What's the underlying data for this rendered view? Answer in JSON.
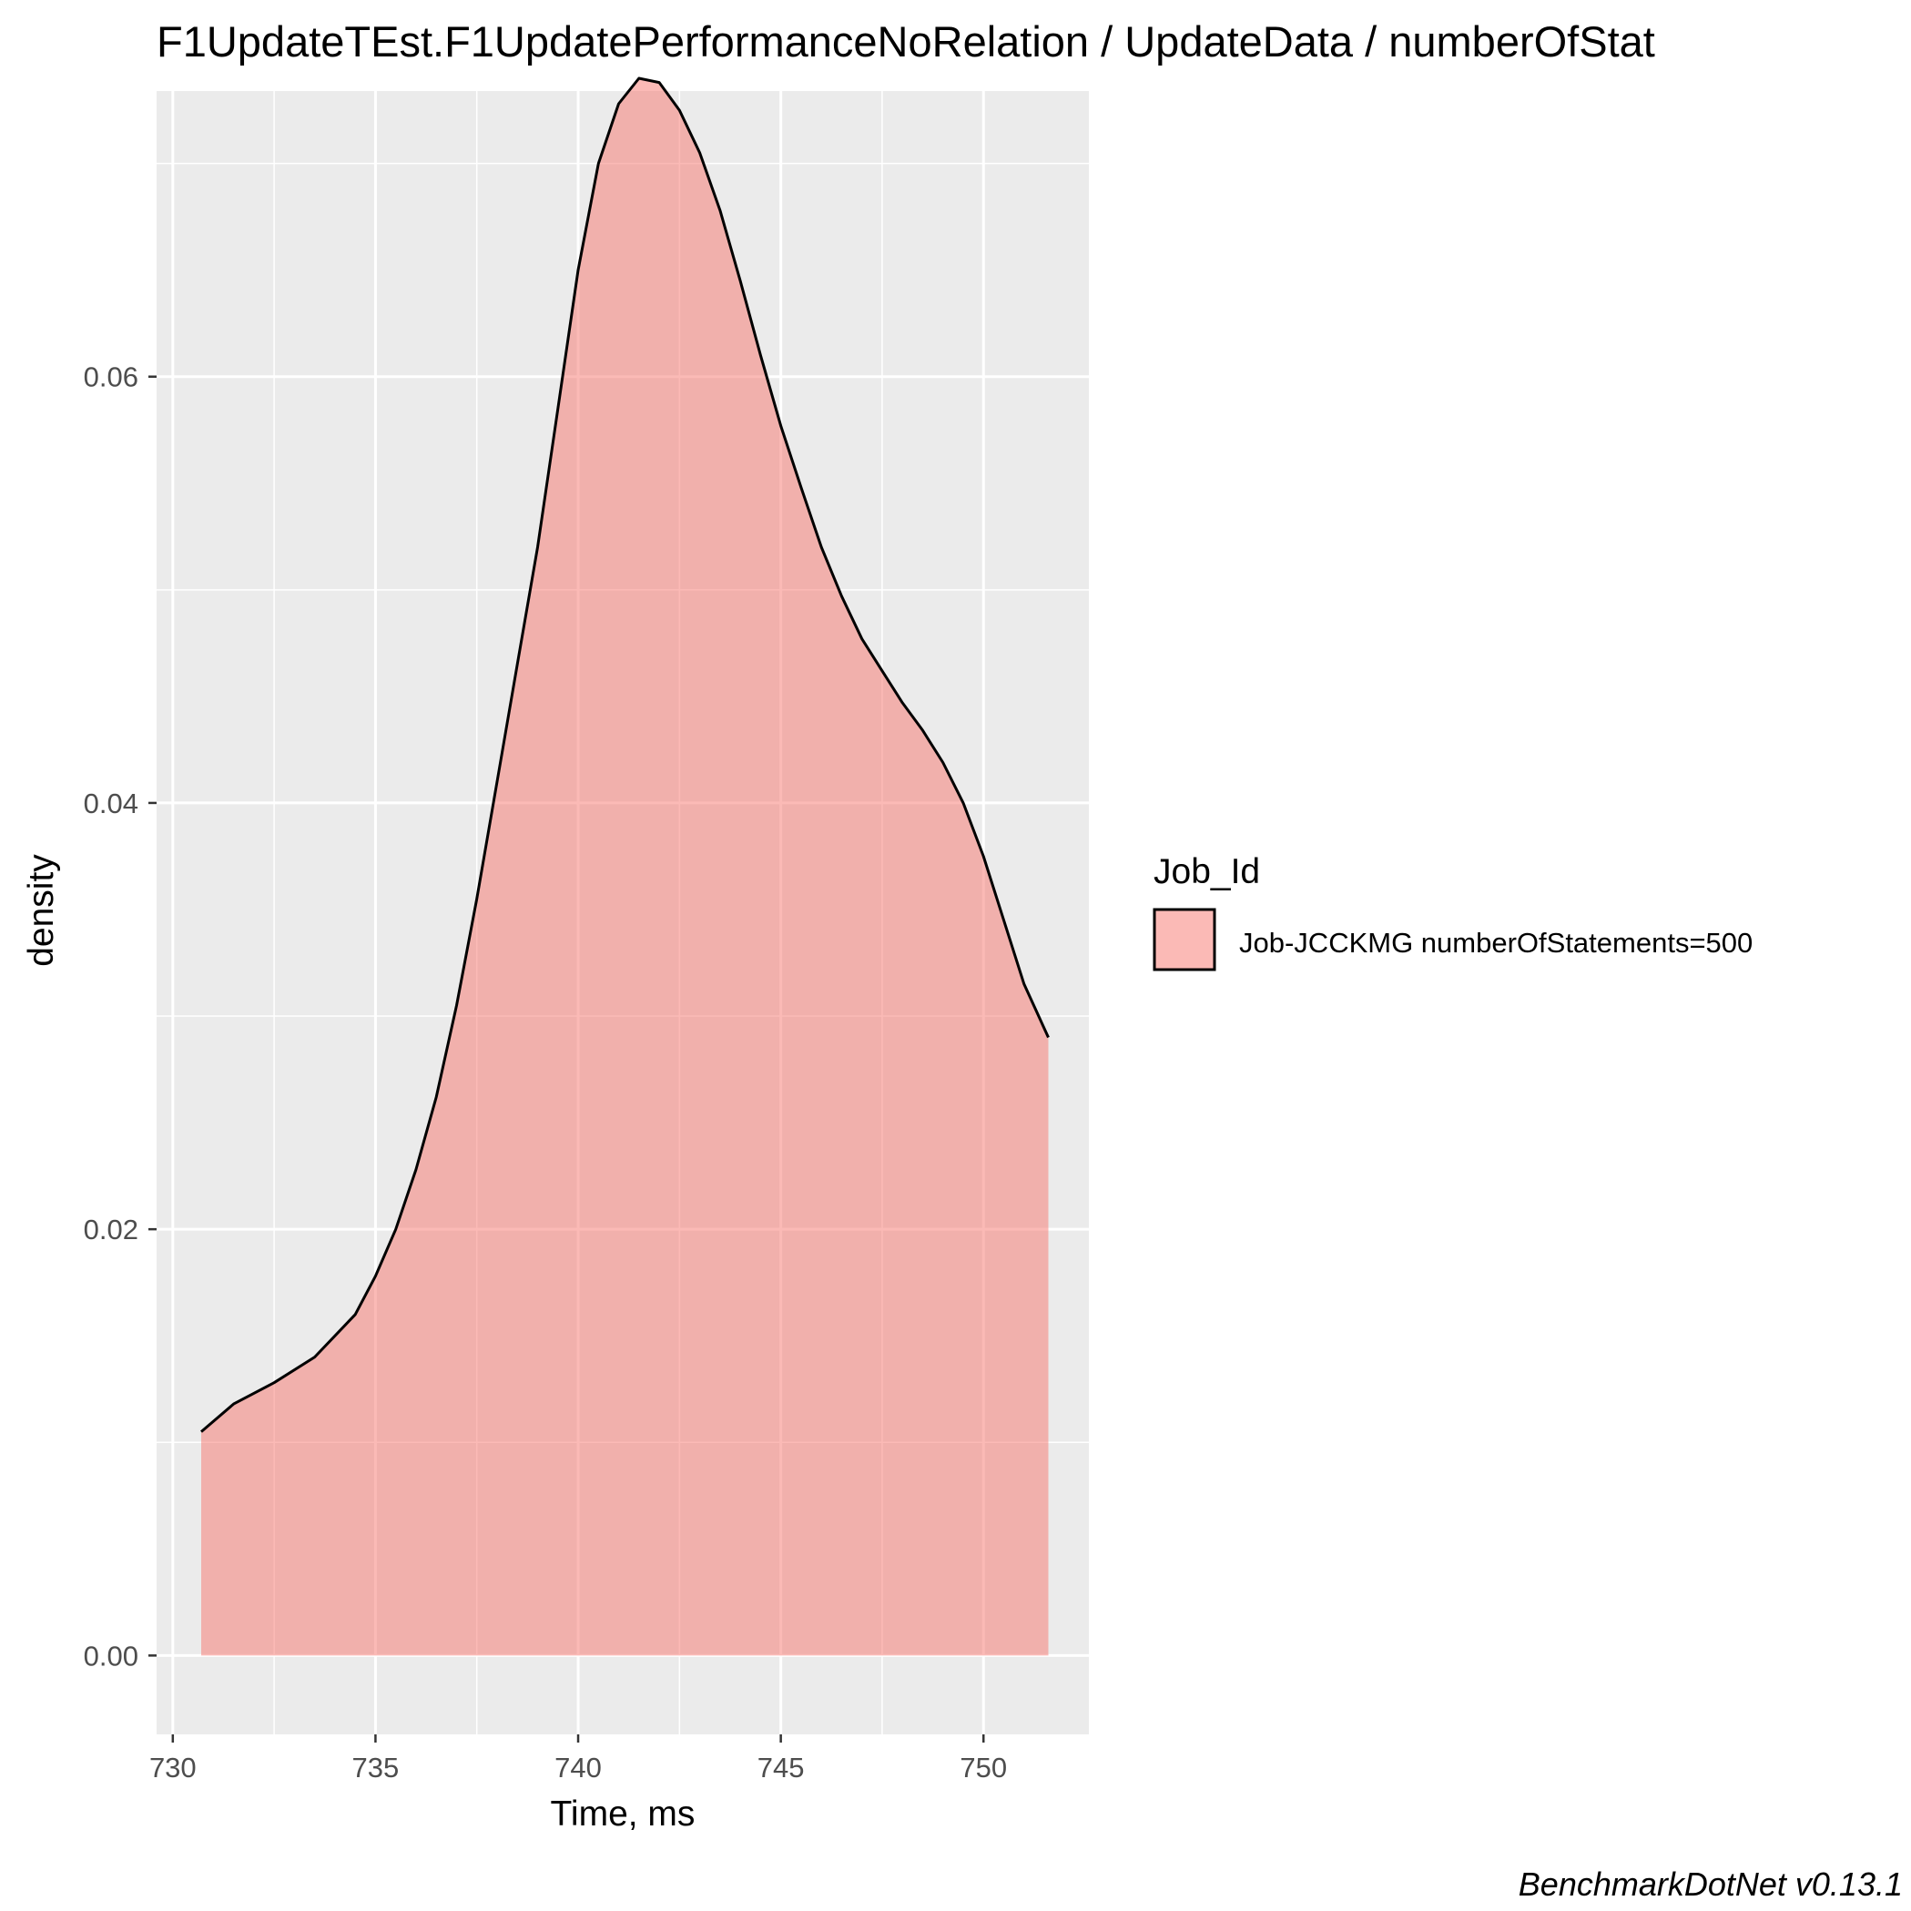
{
  "chart_data": {
    "type": "area",
    "title": "F1UpdateTEst.F1UpdatePerformanceNoRelation / UpdateData / numberOfStat",
    "xlabel": "Time, ms",
    "ylabel": "density",
    "xlim": [
      729.6,
      752.6
    ],
    "ylim": [
      -0.0037,
      0.0734
    ],
    "x_ticks": [
      730,
      735,
      740,
      745,
      750
    ],
    "x_tick_labels": [
      "730",
      "735",
      "740",
      "745",
      "750"
    ],
    "y_ticks": [
      0.0,
      0.02,
      0.04,
      0.06
    ],
    "y_tick_labels": [
      "0.00",
      "0.02",
      "0.04",
      "0.06"
    ],
    "grid": true,
    "legend": {
      "title": "Job_Id",
      "placement": "right",
      "entries": [
        "Job-JCCKMG numberOfStatements=500"
      ]
    },
    "caption": "BenchmarkDotNet v0.13.1",
    "colors": {
      "fill": "#f8766d",
      "fill_opacity": 0.5,
      "line": "#000000",
      "panel": "#ebebeb",
      "grid": "#ffffff"
    },
    "series": [
      {
        "name": "Job-JCCKMG numberOfStatements=500",
        "x": [
          730.7,
          731.5,
          732.5,
          733.5,
          734.5,
          735.0,
          735.5,
          736.0,
          736.5,
          737.0,
          737.5,
          738.0,
          738.5,
          739.0,
          739.5,
          740.0,
          740.5,
          741.0,
          741.5,
          742.0,
          742.5,
          743.0,
          743.5,
          744.0,
          744.5,
          745.0,
          745.5,
          746.0,
          746.5,
          747.0,
          747.5,
          748.0,
          748.5,
          749.0,
          749.5,
          750.0,
          750.5,
          751.0,
          751.6
        ],
        "y": [
          0.0105,
          0.0118,
          0.0128,
          0.014,
          0.016,
          0.0178,
          0.02,
          0.0228,
          0.0262,
          0.0305,
          0.0355,
          0.041,
          0.0465,
          0.052,
          0.0585,
          0.065,
          0.07,
          0.0728,
          0.074,
          0.0738,
          0.0725,
          0.0705,
          0.0678,
          0.0645,
          0.061,
          0.0577,
          0.0548,
          0.052,
          0.0497,
          0.0477,
          0.0462,
          0.0447,
          0.0434,
          0.0419,
          0.04,
          0.0375,
          0.0345,
          0.0315,
          0.029
        ]
      }
    ]
  }
}
